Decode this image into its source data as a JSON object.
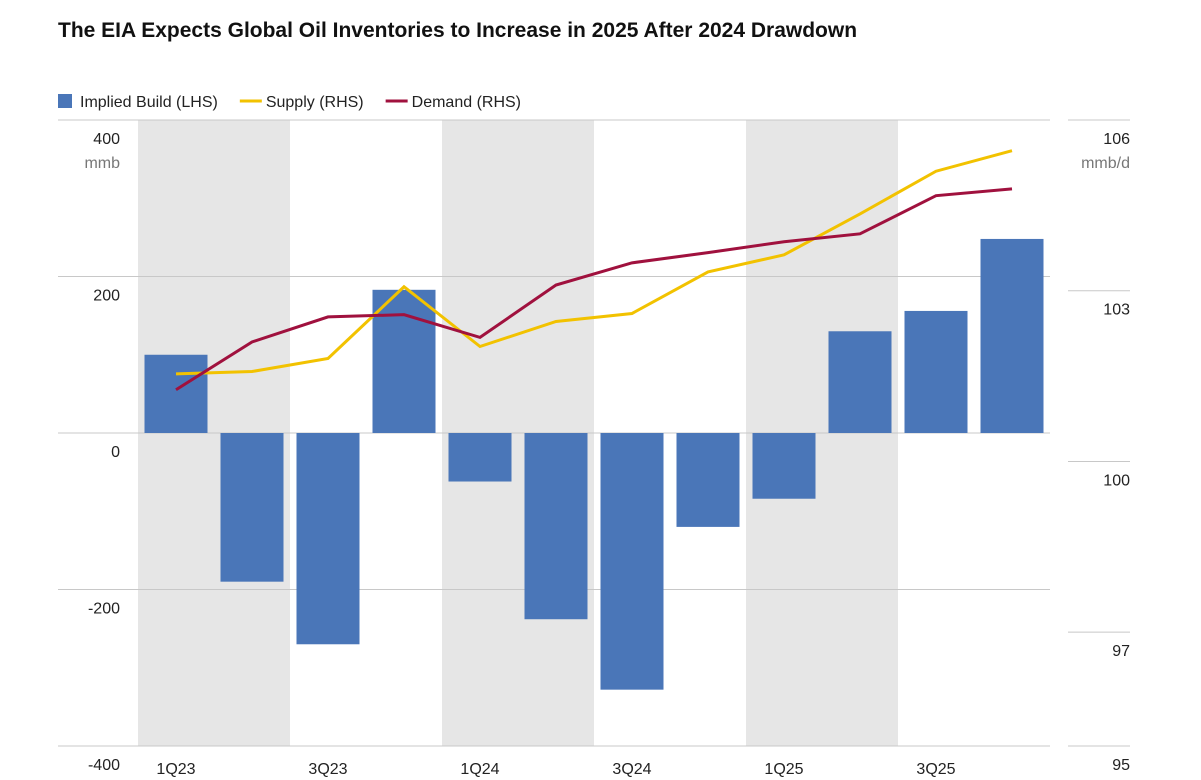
{
  "chart_data": {
    "type": "bar-line",
    "title": "The EIA Expects Global Oil Inventories to Increase in 2025 After 2024 Drawdown",
    "ylabel": "mmb",
    "y2label": "mmb/d",
    "categories": [
      "1Q23",
      null,
      "3Q23",
      null,
      "1Q24",
      null,
      "3Q24",
      null,
      "1Q25",
      null,
      "3Q25",
      null
    ],
    "series": [
      {
        "name": "Implied Build (LHS)",
        "type": "bar",
        "color": "#4a76b8",
        "axis": "y",
        "values": [
          100,
          -190,
          -270,
          183,
          -62,
          -238,
          -328,
          -120,
          -84,
          130,
          156,
          248
        ]
      },
      {
        "name": "Supply (RHS)",
        "type": "line",
        "color": "#f2c200",
        "axis": "y2",
        "values": [
          101.54,
          101.58,
          101.81,
          103.07,
          102.02,
          102.46,
          102.6,
          103.33,
          103.63,
          104.35,
          105.1,
          105.46
        ]
      },
      {
        "name": "Demand (RHS)",
        "type": "line",
        "color": "#a0113e",
        "axis": "y2",
        "values": [
          101.26,
          102.1,
          102.54,
          102.58,
          102.18,
          103.1,
          103.49,
          103.67,
          103.86,
          104.0,
          104.67,
          104.79
        ]
      }
    ],
    "ylim": [
      -400,
      400
    ],
    "yticks": [
      -400,
      -200,
      0,
      200,
      400
    ],
    "y2lim": [
      95,
      106
    ],
    "y2ticks": [
      95,
      97,
      100,
      103,
      106
    ],
    "legend": "top-left"
  }
}
